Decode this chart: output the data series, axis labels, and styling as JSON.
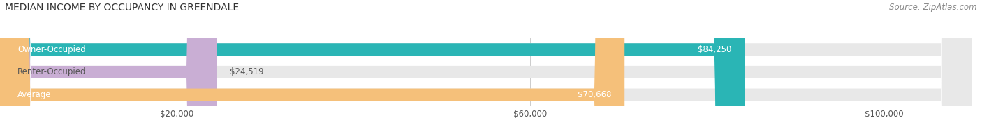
{
  "title": "MEDIAN INCOME BY OCCUPANCY IN GREENDALE",
  "source": "Source: ZipAtlas.com",
  "categories": [
    "Owner-Occupied",
    "Renter-Occupied",
    "Average"
  ],
  "values": [
    84250,
    24519,
    70668
  ],
  "labels": [
    "$84,250",
    "$24,519",
    "$70,668"
  ],
  "bar_colors": [
    "#2ab5b5",
    "#c9aed4",
    "#f5c07a"
  ],
  "bar_bg_color": "#e8e8e8",
  "x_max": 110000,
  "x_ticks": [
    20000,
    60000,
    100000
  ],
  "x_tick_labels": [
    "$20,000",
    "$60,000",
    "$100,000"
  ],
  "title_fontsize": 10,
  "source_fontsize": 8.5,
  "bar_label_fontsize": 8.5,
  "cat_label_fontsize": 8.5,
  "bar_height": 0.55,
  "background_color": "#ffffff"
}
